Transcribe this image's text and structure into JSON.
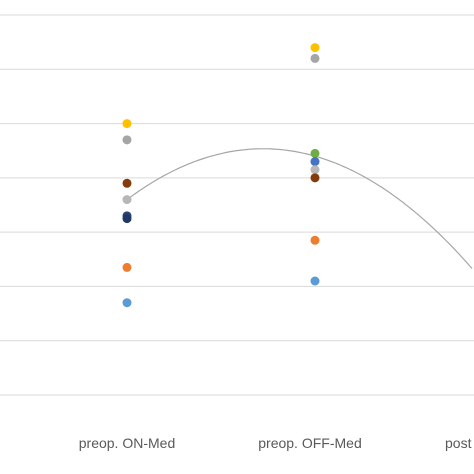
{
  "chart_data": {
    "type": "scatter",
    "categories": [
      "preop. ON-Med",
      "preop. OFF-Med",
      "post"
    ],
    "grid": true,
    "gridline_count": 7,
    "trendline": {
      "type": "polynomial",
      "color": "#a6a6a6",
      "y": [
        3.6,
        4.4,
        1.7
      ]
    },
    "series": [
      {
        "color": "#ffc000",
        "values": [
          5.0,
          6.4
        ]
      },
      {
        "color": "#a5a5a5",
        "values": [
          4.7,
          6.2
        ]
      },
      {
        "color": "#70ad47",
        "values": [
          null,
          4.45
        ]
      },
      {
        "color": "#4472c4",
        "values": [
          null,
          4.3
        ]
      },
      {
        "color": "#b7b7b7",
        "values": [
          3.6,
          4.15
        ]
      },
      {
        "color": "#843c0c",
        "values": [
          3.9,
          4.0
        ]
      },
      {
        "color": "#264478",
        "values": [
          3.3,
          null
        ]
      },
      {
        "color": "#1f3864",
        "values": [
          3.25,
          null
        ]
      },
      {
        "color": "#ed7d31",
        "values": [
          2.35,
          2.85
        ]
      },
      {
        "color": "#5b9bd5",
        "values": [
          1.7,
          2.1
        ]
      }
    ]
  }
}
